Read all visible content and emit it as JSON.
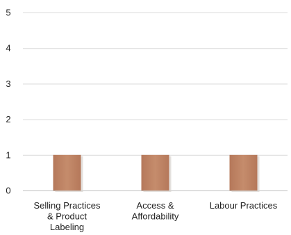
{
  "chart_data": {
    "type": "bar",
    "categories": [
      [
        "Selling Practices",
        "& Product",
        "Labeling"
      ],
      [
        "Access &",
        "Affordability"
      ],
      [
        "Labour Practices"
      ]
    ],
    "values": [
      1,
      1,
      1
    ],
    "ylim": [
      0,
      5
    ],
    "yticks": [
      0,
      1,
      2,
      3,
      4,
      5
    ],
    "grid": true,
    "legend": "none",
    "colors": {
      "bar": "#b5785a",
      "bar_highlight": "#c58c6c",
      "bar_shadow": "#d8d4d0"
    }
  }
}
